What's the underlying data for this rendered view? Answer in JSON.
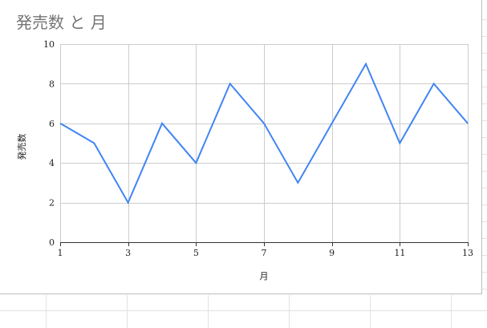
{
  "chart_data": {
    "type": "line",
    "title": "発売数 と 月",
    "xlabel": "月",
    "ylabel": "発売数",
    "xlim": [
      1,
      13
    ],
    "ylim": [
      0,
      10
    ],
    "x_ticks": [
      1,
      3,
      5,
      7,
      9,
      11,
      13
    ],
    "y_ticks": [
      0,
      2,
      4,
      6,
      8,
      10
    ],
    "grid": true,
    "series": [
      {
        "color": "#4285f4",
        "x": [
          1,
          2,
          3,
          4,
          5,
          6,
          7,
          8,
          9,
          10,
          11,
          12,
          13
        ],
        "y": [
          6,
          5,
          2,
          6,
          4,
          8,
          6,
          3,
          6,
          9,
          5,
          8,
          6
        ]
      }
    ]
  },
  "colors": {
    "line": "#4285f4",
    "gridline": "#cccccc",
    "title": "#757575",
    "sheet_gridline": "#e2e2e2"
  }
}
